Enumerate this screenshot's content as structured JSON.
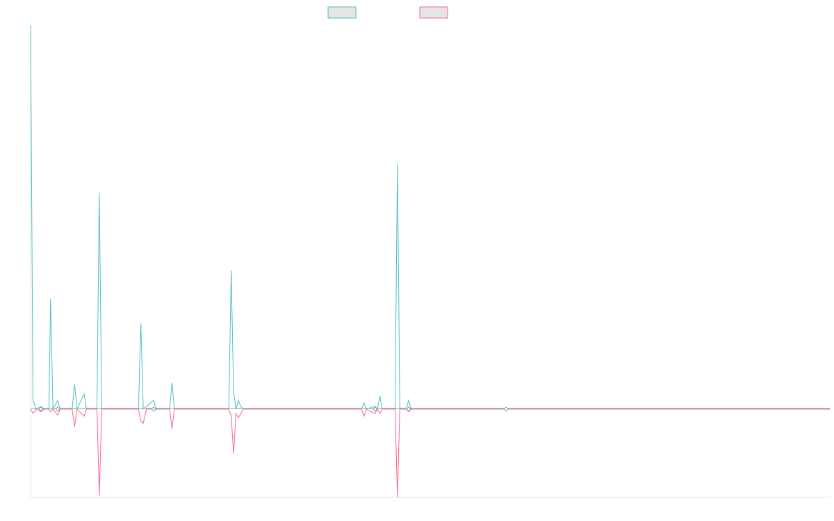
{
  "chart_data": {
    "type": "line",
    "title": "",
    "xlabel": "",
    "ylabel": "",
    "legend": "top-center",
    "grid": false,
    "xlim": [
      0,
      100
    ],
    "ylim": [
      -100,
      435
    ],
    "series": [
      {
        "color": "#4bc0c0",
        "fill": "#e5e5e5",
        "points": [
          [
            0,
            435
          ],
          [
            0.3,
            10
          ],
          [
            0.7,
            0
          ],
          [
            1.3,
            3
          ],
          [
            1.7,
            0
          ],
          [
            2.3,
            0
          ],
          [
            2.5,
            125
          ],
          [
            2.8,
            0
          ],
          [
            3.4,
            10
          ],
          [
            3.7,
            0
          ],
          [
            5.2,
            0
          ],
          [
            5.5,
            28
          ],
          [
            5.8,
            0
          ],
          [
            6.7,
            17
          ],
          [
            7.0,
            0
          ],
          [
            8.3,
            0
          ],
          [
            8.6,
            245
          ],
          [
            8.9,
            0
          ],
          [
            13.5,
            0
          ],
          [
            13.8,
            97
          ],
          [
            14.1,
            0
          ],
          [
            15.4,
            10
          ],
          [
            15.7,
            0
          ],
          [
            17.4,
            0
          ],
          [
            17.7,
            30
          ],
          [
            18.0,
            0
          ],
          [
            24.8,
            0
          ],
          [
            25.1,
            157
          ],
          [
            25.4,
            20
          ],
          [
            25.7,
            0
          ],
          [
            26.0,
            10
          ],
          [
            26.3,
            3
          ],
          [
            26.6,
            0
          ],
          [
            41.4,
            0
          ],
          [
            41.7,
            7
          ],
          [
            42.0,
            0
          ],
          [
            43.1,
            3
          ],
          [
            43.4,
            0
          ],
          [
            43.7,
            15
          ],
          [
            44.0,
            0
          ],
          [
            45.6,
            0
          ],
          [
            45.9,
            278
          ],
          [
            46.2,
            0
          ],
          [
            47.0,
            0
          ],
          [
            47.3,
            10
          ],
          [
            47.6,
            0
          ],
          [
            59.5,
            0
          ],
          [
            100,
            0
          ]
        ]
      },
      {
        "color": "#ff6384",
        "fill": "#e5e5e5",
        "points": [
          [
            0,
            0
          ],
          [
            0.3,
            -5
          ],
          [
            0.7,
            0
          ],
          [
            1.3,
            -3
          ],
          [
            1.7,
            0
          ],
          [
            2.3,
            0
          ],
          [
            2.5,
            -3
          ],
          [
            2.8,
            0
          ],
          [
            3.4,
            -7
          ],
          [
            3.7,
            0
          ],
          [
            5.2,
            0
          ],
          [
            5.5,
            -20
          ],
          [
            5.8,
            0
          ],
          [
            6.7,
            -8
          ],
          [
            7.0,
            0
          ],
          [
            8.3,
            0
          ],
          [
            8.6,
            -98
          ],
          [
            8.9,
            0
          ],
          [
            13.5,
            0
          ],
          [
            13.8,
            -14
          ],
          [
            14.1,
            -16
          ],
          [
            14.5,
            0
          ],
          [
            17.4,
            0
          ],
          [
            17.7,
            -22
          ],
          [
            18.0,
            0
          ],
          [
            24.8,
            0
          ],
          [
            25.1,
            -8
          ],
          [
            25.4,
            -50
          ],
          [
            25.7,
            -5
          ],
          [
            26.0,
            -10
          ],
          [
            26.3,
            -5
          ],
          [
            26.6,
            0
          ],
          [
            41.4,
            0
          ],
          [
            41.7,
            -8
          ],
          [
            42.0,
            0
          ],
          [
            43.1,
            -5
          ],
          [
            43.4,
            0
          ],
          [
            43.7,
            -5
          ],
          [
            44.0,
            0
          ],
          [
            45.6,
            0
          ],
          [
            45.9,
            -100
          ],
          [
            46.2,
            0
          ],
          [
            47.0,
            0
          ],
          [
            47.3,
            -3
          ],
          [
            47.6,
            0
          ],
          [
            59.5,
            0
          ],
          [
            100,
            0
          ]
        ]
      }
    ],
    "markers_x": [
      1.3,
      3.4,
      15.4,
      43.1,
      47.3,
      59.5
    ]
  }
}
